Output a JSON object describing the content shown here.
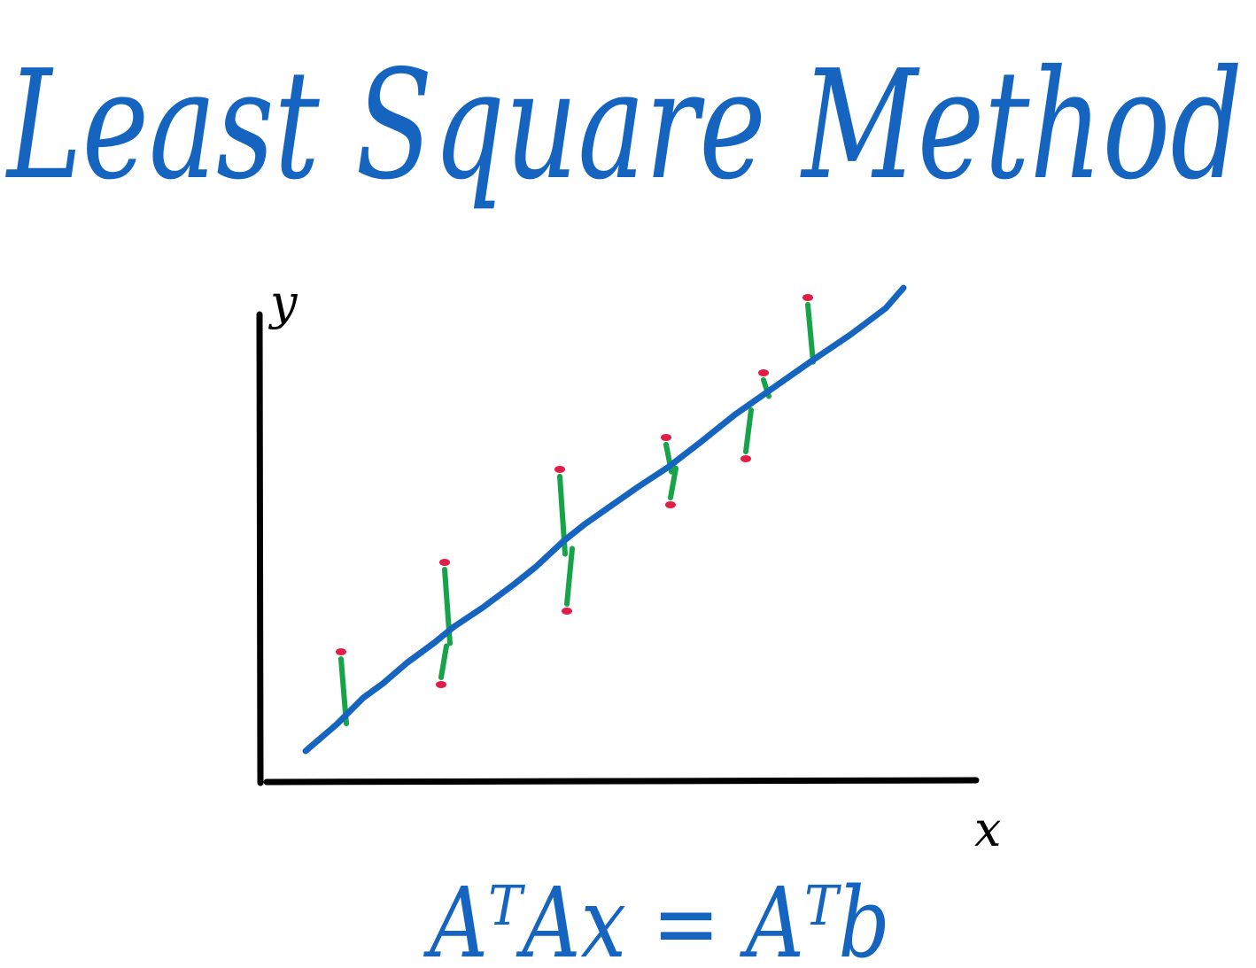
{
  "title": "Least Square Method",
  "diagram": {
    "y_axis_label": "y",
    "x_axis_label": "x",
    "equation": "AᵀAx = Aᵀb"
  }
}
